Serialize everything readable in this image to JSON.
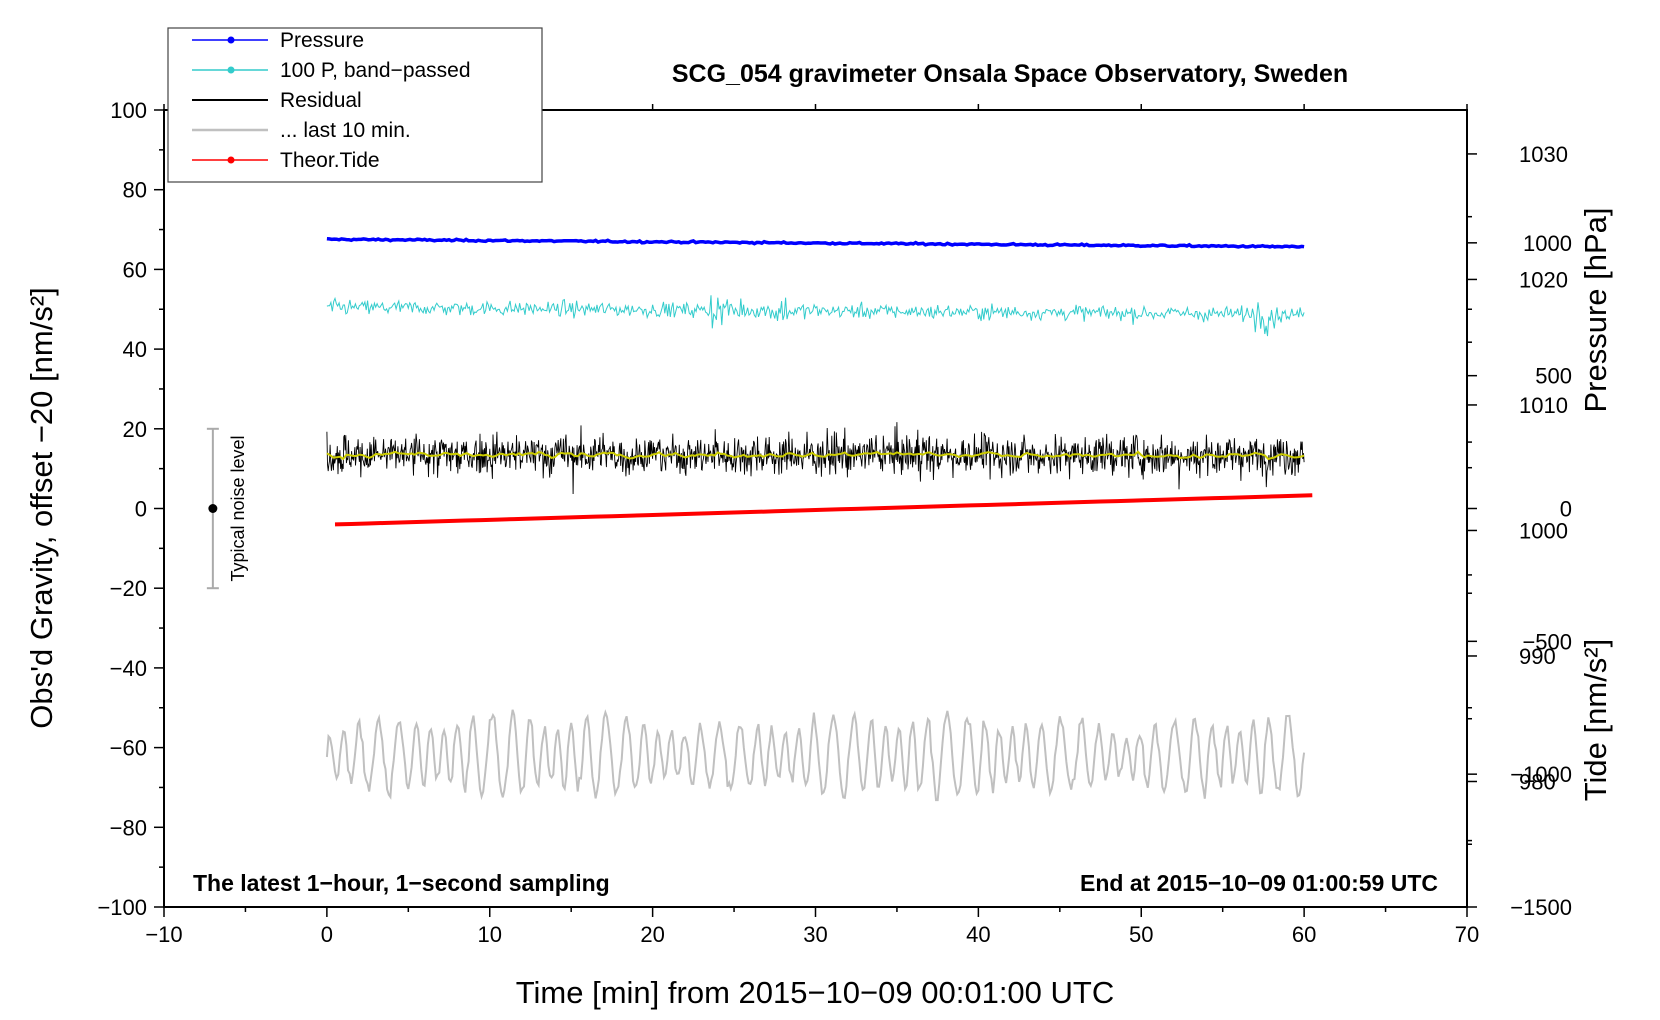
{
  "chart_data": {
    "type": "line",
    "title": "SCG_054 gravimeter Onsala Space Observatory, Sweden",
    "xlabel": "Time [min] from 2015−10−09 00:01:00 UTC",
    "ylabel_left": "Obs'd Gravity, offset −20 [nm/s²]",
    "ylabel_pressure": "Pressure [hPa]",
    "ylabel_tide": "Tide [nm/s²]",
    "xlim": [
      -10,
      70
    ],
    "ylim_left": [
      -100,
      100
    ],
    "ylim_pressure": [
      970,
      1033.5
    ],
    "ylim_tide": [
      -1500,
      1500
    ],
    "x_ticks": [
      {
        "v": -10,
        "t": "−10"
      },
      {
        "v": 0,
        "t": "0"
      },
      {
        "v": 10,
        "t": "10"
      },
      {
        "v": 20,
        "t": "20"
      },
      {
        "v": 30,
        "t": "30"
      },
      {
        "v": 40,
        "t": "40"
      },
      {
        "v": 50,
        "t": "50"
      },
      {
        "v": 60,
        "t": "60"
      },
      {
        "v": 70,
        "t": "70"
      }
    ],
    "y_ticks_left": [
      {
        "v": 100,
        "t": "100"
      },
      {
        "v": 80,
        "t": "80"
      },
      {
        "v": 60,
        "t": "60"
      },
      {
        "v": 40,
        "t": "40"
      },
      {
        "v": 20,
        "t": "20"
      },
      {
        "v": 0,
        "t": "0"
      },
      {
        "v": -20,
        "t": "−20"
      },
      {
        "v": -40,
        "t": "−40"
      },
      {
        "v": -60,
        "t": "−60"
      },
      {
        "v": -80,
        "t": "−80"
      },
      {
        "v": -100,
        "t": "−100"
      }
    ],
    "y_ticks_pressure": [
      {
        "v": 1030,
        "t": "1030"
      },
      {
        "v": 1020,
        "t": "1020"
      },
      {
        "v": 1010,
        "t": "1010"
      },
      {
        "v": 1000,
        "t": "1000"
      },
      {
        "v": 990,
        "t": "990"
      },
      {
        "v": 980,
        "t": "980"
      }
    ],
    "y_ticks_tide": [
      {
        "v": 1000,
        "t": "1000"
      },
      {
        "v": 500,
        "t": "500"
      },
      {
        "v": 0,
        "t": "0"
      },
      {
        "v": -500,
        "t": "−500"
      },
      {
        "v": -1000,
        "t": "−1000"
      },
      {
        "v": -1500,
        "t": "−1500"
      }
    ],
    "series": [
      {
        "name": "Pressure",
        "color": "#0000ff",
        "axis": "pressure",
        "x_start": 0,
        "x_end": 60,
        "start_value": 1023.2,
        "end_value": 1022.6,
        "sampling": "1 s"
      },
      {
        "name": "100 P, band−passed",
        "color": "#33cccc",
        "axis": "left",
        "x_start": 0,
        "x_end": 60,
        "mean": 50.5,
        "noise_amplitude": 3
      },
      {
        "name": "Residual",
        "color": "#000000",
        "axis": "left",
        "x_start": 0,
        "x_end": 60,
        "mean": 13.5,
        "noise_amplitude": 10
      },
      {
        "name": "... last 10 min.",
        "color": "#c0c0c0",
        "axis": "left",
        "x_start": 0,
        "x_end": 60,
        "mean": -62,
        "oscillation_amplitude": 8
      },
      {
        "name": "Theor.Tide",
        "color": "#ff0000",
        "axis": "tide",
        "x_start": 0.5,
        "x_end": 60.5,
        "start_value": -60,
        "end_value": 50
      }
    ],
    "smoothed_residual": {
      "color": "#cccc00",
      "mean": 13.5
    },
    "noise_bar": {
      "label": "Typical noise level",
      "x": -7,
      "center": 0,
      "low": -20,
      "high": 20
    },
    "annotation_left": "The latest 1−hour, 1−second sampling",
    "annotation_right": "End at 2015−10−09 01:00:59 UTC",
    "legend_position": "top-left"
  }
}
